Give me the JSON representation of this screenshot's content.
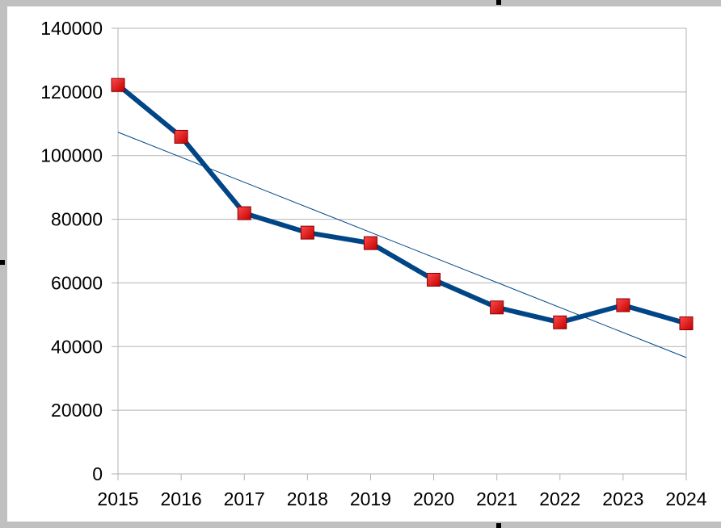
{
  "chart_data": {
    "type": "line",
    "title": "",
    "xlabel": "",
    "ylabel": "",
    "categories": [
      "2015",
      "2016",
      "2017",
      "2018",
      "2019",
      "2020",
      "2021",
      "2022",
      "2023",
      "2024"
    ],
    "series": [
      {
        "values": [
          122200,
          105900,
          81900,
          75800,
          72500,
          61000,
          52300,
          47600,
          53000,
          47300
        ],
        "color": "#004586",
        "marker": "square",
        "marker_color": "#e8141a"
      }
    ],
    "trendline": {
      "type": "linear",
      "color": "#004586"
    },
    "ylim": [
      0,
      140000
    ],
    "yticks": [
      "0",
      "20000",
      "40000",
      "60000",
      "80000",
      "100000",
      "120000",
      "140000"
    ],
    "grid": true,
    "legend": "none"
  }
}
